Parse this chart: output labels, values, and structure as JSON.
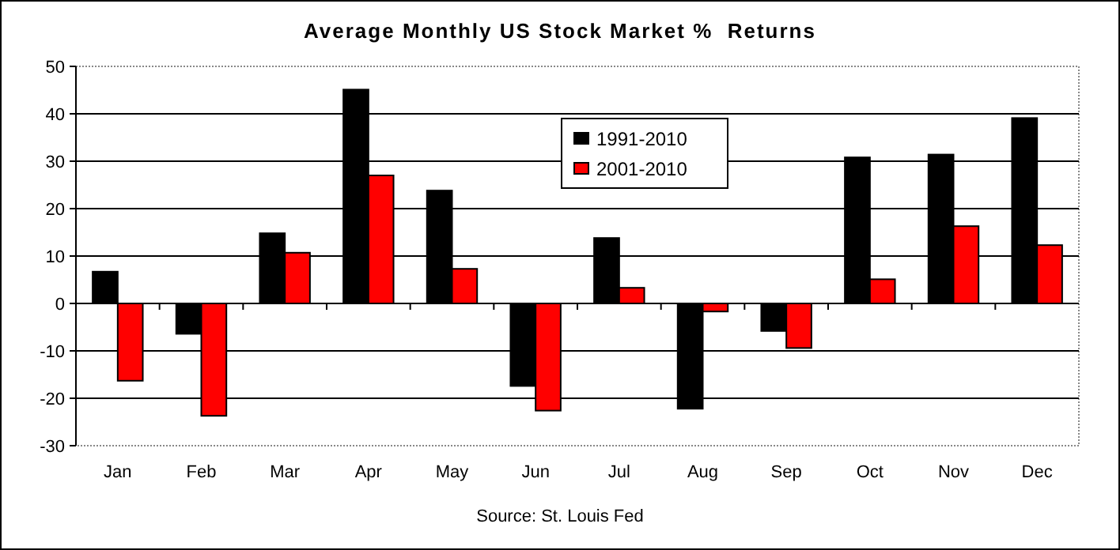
{
  "chart_data": {
    "type": "bar",
    "title": "Average Monthly US Stock Market %  Returns",
    "categories": [
      "Jan",
      "Feb",
      "Mar",
      "Apr",
      "May",
      "Jun",
      "Jul",
      "Aug",
      "Sep",
      "Oct",
      "Nov",
      "Dec"
    ],
    "series": [
      {
        "name": "1991-2010",
        "color": "#000000",
        "values": [
          6.7,
          -6.4,
          14.8,
          45.1,
          23.8,
          -17.4,
          13.8,
          -22.2,
          -5.8,
          30.8,
          31.4,
          39.1
        ]
      },
      {
        "name": "2001-2010",
        "color": "#ff0000",
        "values": [
          -16.3,
          -23.7,
          10.7,
          27.0,
          7.3,
          -22.6,
          3.3,
          -1.7,
          -9.4,
          5.1,
          16.3,
          12.3
        ]
      }
    ],
    "ylim": [
      -30,
      50
    ],
    "yticks": [
      -30,
      -20,
      -10,
      0,
      10,
      20,
      30,
      40,
      50
    ],
    "grid": "y",
    "legend": "top",
    "annotations": [
      "Source: St. Louis Fed"
    ]
  }
}
